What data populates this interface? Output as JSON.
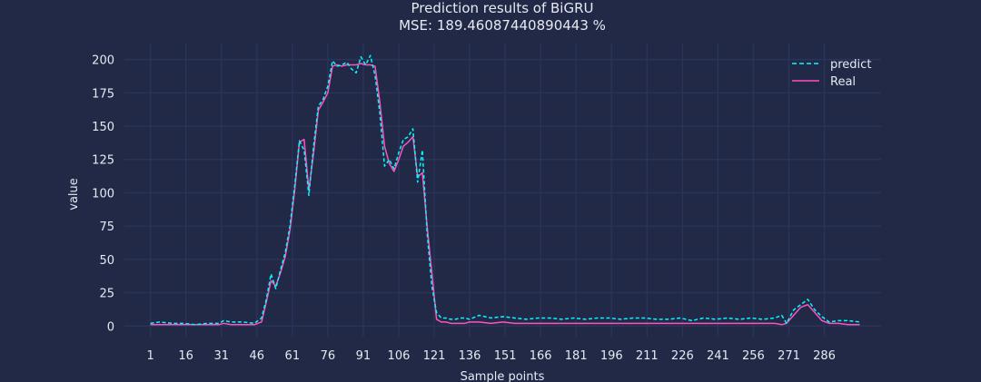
{
  "chart_data": {
    "type": "line",
    "title": "Prediction results of BiGRU",
    "subtitle": "MSE: 189.46087440890443 %",
    "xlabel": "Sample points",
    "ylabel": "value",
    "xlim": [
      -10,
      310
    ],
    "ylim": [
      -8,
      212
    ],
    "x_ticks": [
      1,
      16,
      31,
      46,
      61,
      76,
      91,
      106,
      121,
      136,
      151,
      166,
      181,
      196,
      211,
      226,
      241,
      256,
      271,
      286
    ],
    "y_ticks": [
      0,
      25,
      50,
      75,
      100,
      125,
      150,
      175,
      200
    ],
    "grid": true,
    "legend_position": "top-right",
    "colors": {
      "background": "#212946",
      "grid": "#2A3459",
      "text": "#e6e9f2"
    },
    "series": [
      {
        "name": "predict",
        "color": "#08F7FE",
        "style": "dashed",
        "x": [
          1,
          5,
          10,
          15,
          20,
          25,
          30,
          32,
          35,
          40,
          45,
          48,
          50,
          52,
          54,
          56,
          58,
          60,
          62,
          64,
          66,
          68,
          70,
          72,
          74,
          76,
          78,
          80,
          82,
          84,
          86,
          88,
          90,
          92,
          94,
          96,
          98,
          100,
          102,
          104,
          106,
          108,
          110,
          112,
          114,
          116,
          118,
          120,
          122,
          124,
          126,
          128,
          130,
          132,
          134,
          136,
          140,
          145,
          150,
          155,
          160,
          165,
          170,
          175,
          180,
          185,
          190,
          195,
          200,
          205,
          210,
          215,
          220,
          225,
          230,
          235,
          240,
          245,
          250,
          255,
          260,
          265,
          268,
          270,
          273,
          276,
          279,
          282,
          285,
          288,
          292,
          296,
          301
        ],
        "y": [
          2,
          3,
          2,
          2,
          1,
          2,
          2,
          4,
          3,
          3,
          2,
          6,
          20,
          39,
          28,
          42,
          55,
          75,
          105,
          139,
          132,
          98,
          135,
          165,
          170,
          180,
          199,
          195,
          196,
          198,
          193,
          190,
          202,
          196,
          203,
          188,
          160,
          120,
          125,
          118,
          130,
          140,
          142,
          148,
          108,
          132,
          70,
          30,
          10,
          6,
          6,
          5,
          5,
          6,
          6,
          5,
          8,
          6,
          7,
          6,
          5,
          6,
          6,
          5,
          6,
          5,
          6,
          6,
          5,
          6,
          6,
          5,
          5,
          6,
          4,
          6,
          5,
          6,
          5,
          6,
          5,
          6,
          8,
          2,
          12,
          16,
          20,
          12,
          7,
          3,
          4,
          4,
          3
        ]
      },
      {
        "name": "Real",
        "color": "#FE53BB",
        "style": "solid",
        "x": [
          1,
          5,
          10,
          15,
          20,
          25,
          30,
          32,
          35,
          40,
          45,
          48,
          50,
          52,
          54,
          56,
          58,
          60,
          62,
          64,
          66,
          68,
          70,
          72,
          74,
          76,
          78,
          80,
          82,
          84,
          86,
          88,
          90,
          92,
          94,
          96,
          98,
          100,
          102,
          104,
          106,
          108,
          110,
          112,
          114,
          116,
          118,
          120,
          122,
          124,
          126,
          128,
          130,
          132,
          134,
          136,
          140,
          145,
          150,
          155,
          160,
          165,
          170,
          175,
          180,
          185,
          190,
          195,
          200,
          205,
          210,
          215,
          220,
          225,
          230,
          235,
          240,
          245,
          250,
          255,
          260,
          265,
          268,
          270,
          273,
          276,
          279,
          282,
          285,
          288,
          292,
          296,
          301
        ],
        "y": [
          1,
          1,
          1,
          1,
          1,
          1,
          1,
          2,
          1,
          1,
          1,
          3,
          18,
          34,
          30,
          40,
          52,
          72,
          102,
          138,
          140,
          102,
          130,
          162,
          168,
          175,
          195,
          196,
          195,
          196,
          196,
          196,
          197,
          196,
          196,
          195,
          168,
          135,
          122,
          116,
          125,
          135,
          138,
          142,
          112,
          115,
          75,
          40,
          5,
          3,
          3,
          2,
          2,
          2,
          2,
          3,
          3,
          2,
          3,
          2,
          2,
          2,
          2,
          2,
          2,
          2,
          2,
          2,
          2,
          2,
          2,
          2,
          2,
          2,
          2,
          2,
          2,
          2,
          2,
          2,
          2,
          2,
          1,
          2,
          8,
          14,
          16,
          10,
          4,
          2,
          2,
          1,
          1
        ]
      }
    ]
  }
}
